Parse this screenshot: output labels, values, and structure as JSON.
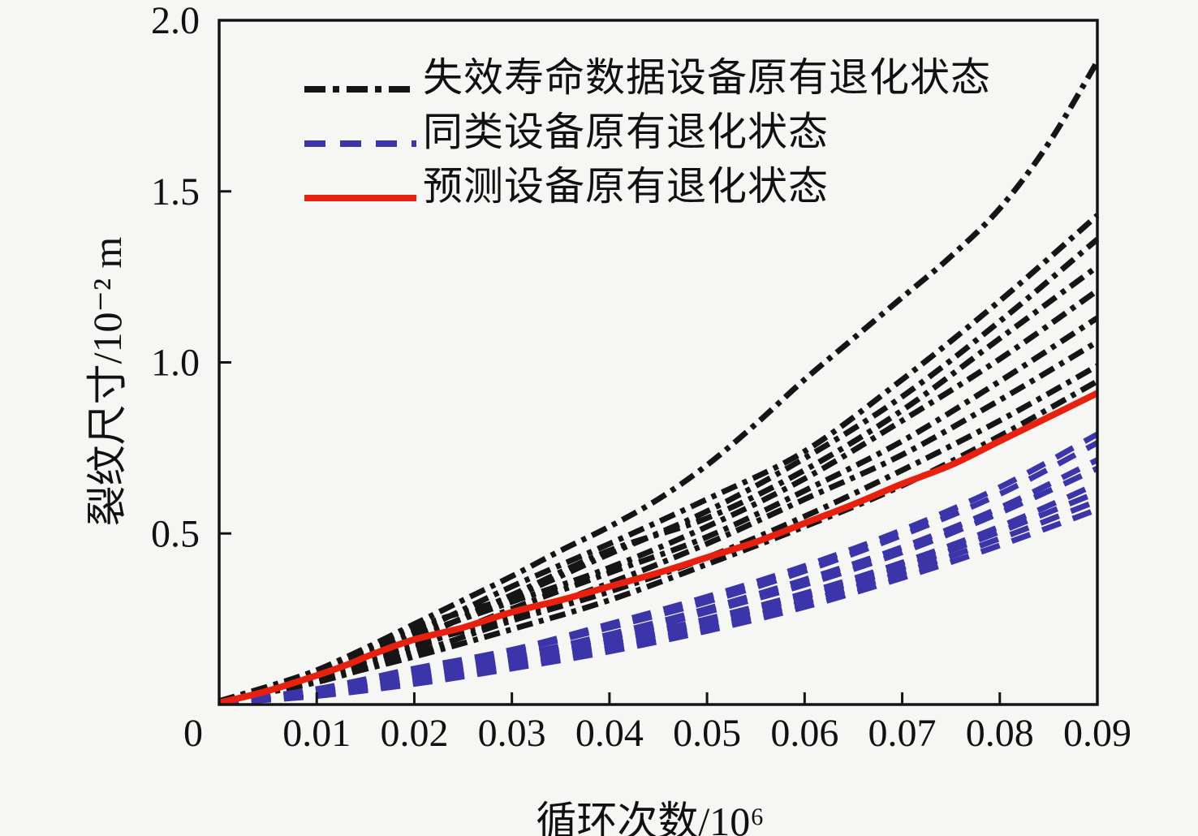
{
  "figure": {
    "background": "#f6f6f4",
    "frame_color": "#141414"
  },
  "chart_data": {
    "type": "line",
    "title": "",
    "xlabel": "循环次数/10⁶",
    "ylabel": "裂纹尺寸/10⁻² m",
    "xlim": [
      0,
      0.09
    ],
    "ylim": [
      0,
      2.0
    ],
    "grid": false,
    "legend_position": "top-left-inside",
    "x_ticks": [
      {
        "v": 0,
        "label": "0"
      },
      {
        "v": 0.01,
        "label": "0.01"
      },
      {
        "v": 0.02,
        "label": "0.02"
      },
      {
        "v": 0.03,
        "label": "0.03"
      },
      {
        "v": 0.04,
        "label": "0.04"
      },
      {
        "v": 0.05,
        "label": "0.05"
      },
      {
        "v": 0.06,
        "label": "0.06"
      },
      {
        "v": 0.07,
        "label": "0.07"
      },
      {
        "v": 0.08,
        "label": "0.08"
      },
      {
        "v": 0.09,
        "label": "0.09"
      }
    ],
    "y_ticks": [
      {
        "v": 0.5,
        "label": "0.5"
      },
      {
        "v": 1.0,
        "label": "1.0"
      },
      {
        "v": 1.5,
        "label": "1.5"
      },
      {
        "v": 2.0,
        "label": "2.0"
      }
    ],
    "legend": [
      {
        "label": "失效寿命数据设备原有退化状态",
        "color": "#151515",
        "dash": "dashdot"
      },
      {
        "label": "同类设备原有退化状态",
        "color": "#3c35aa",
        "dash": "dashed"
      },
      {
        "label": "预测设备原有退化状态",
        "color": "#e8200f",
        "dash": "solid"
      }
    ],
    "series": [
      {
        "name": "failure-top",
        "legend_group": "失效寿命数据设备原有退化状态",
        "color": "#151515",
        "dash": "dashdot",
        "width": 7,
        "points": [
          [
            0,
            0.01
          ],
          [
            0.005,
            0.045
          ],
          [
            0.01,
            0.1
          ],
          [
            0.015,
            0.165
          ],
          [
            0.02,
            0.235
          ],
          [
            0.025,
            0.305
          ],
          [
            0.03,
            0.375
          ],
          [
            0.035,
            0.45
          ],
          [
            0.04,
            0.52
          ],
          [
            0.045,
            0.6
          ],
          [
            0.05,
            0.7
          ],
          [
            0.055,
            0.82
          ],
          [
            0.06,
            0.95
          ],
          [
            0.065,
            1.07
          ],
          [
            0.07,
            1.19
          ],
          [
            0.075,
            1.31
          ],
          [
            0.08,
            1.45
          ],
          [
            0.085,
            1.64
          ],
          [
            0.09,
            1.88
          ]
        ]
      },
      {
        "name": "failure-1",
        "legend_group": "失效寿命数据设备原有退化状态",
        "color": "#151515",
        "dash": "dashdot",
        "width": 7,
        "points": [
          [
            0,
            0.01
          ],
          [
            0.01,
            0.09
          ],
          [
            0.02,
            0.21
          ],
          [
            0.03,
            0.345
          ],
          [
            0.04,
            0.47
          ],
          [
            0.05,
            0.6
          ],
          [
            0.06,
            0.74
          ],
          [
            0.07,
            0.95
          ],
          [
            0.08,
            1.18
          ],
          [
            0.09,
            1.43
          ]
        ]
      },
      {
        "name": "failure-2",
        "legend_group": "失效寿命数据设备原有退化状态",
        "color": "#151515",
        "dash": "dashdot",
        "width": 7,
        "points": [
          [
            0,
            0.01
          ],
          [
            0.01,
            0.1
          ],
          [
            0.02,
            0.225
          ],
          [
            0.03,
            0.315
          ],
          [
            0.04,
            0.44
          ],
          [
            0.05,
            0.565
          ],
          [
            0.06,
            0.72
          ],
          [
            0.07,
            0.9
          ],
          [
            0.08,
            1.12
          ],
          [
            0.09,
            1.36
          ]
        ]
      },
      {
        "name": "failure-3",
        "legend_group": "失效寿命数据设备原有退化状态",
        "color": "#151515",
        "dash": "dashdot",
        "width": 7,
        "points": [
          [
            0,
            0.01
          ],
          [
            0.01,
            0.08
          ],
          [
            0.02,
            0.19
          ],
          [
            0.03,
            0.32
          ],
          [
            0.04,
            0.45
          ],
          [
            0.05,
            0.545
          ],
          [
            0.06,
            0.685
          ],
          [
            0.07,
            0.86
          ],
          [
            0.08,
            1.07
          ],
          [
            0.09,
            1.28
          ]
        ]
      },
      {
        "name": "failure-4",
        "legend_group": "失效寿命数据设备原有退化状态",
        "color": "#151515",
        "dash": "dashdot",
        "width": 7,
        "points": [
          [
            0,
            0.01
          ],
          [
            0.01,
            0.09
          ],
          [
            0.02,
            0.2
          ],
          [
            0.03,
            0.3
          ],
          [
            0.04,
            0.4
          ],
          [
            0.05,
            0.52
          ],
          [
            0.06,
            0.66
          ],
          [
            0.07,
            0.83
          ],
          [
            0.08,
            1.01
          ],
          [
            0.09,
            1.21
          ]
        ]
      },
      {
        "name": "failure-5",
        "legend_group": "失效寿命数据设备原有退化状态",
        "color": "#151515",
        "dash": "dashdot",
        "width": 7,
        "points": [
          [
            0,
            0.01
          ],
          [
            0.01,
            0.07
          ],
          [
            0.02,
            0.165
          ],
          [
            0.03,
            0.28
          ],
          [
            0.04,
            0.385
          ],
          [
            0.05,
            0.49
          ],
          [
            0.06,
            0.625
          ],
          [
            0.07,
            0.77
          ],
          [
            0.08,
            0.945
          ],
          [
            0.09,
            1.13
          ]
        ]
      },
      {
        "name": "failure-6",
        "legend_group": "失效寿命数据设备原有退化状态",
        "color": "#151515",
        "dash": "dashdot",
        "width": 7,
        "points": [
          [
            0,
            0.01
          ],
          [
            0.01,
            0.08
          ],
          [
            0.02,
            0.175
          ],
          [
            0.03,
            0.255
          ],
          [
            0.04,
            0.355
          ],
          [
            0.05,
            0.47
          ],
          [
            0.06,
            0.6
          ],
          [
            0.07,
            0.73
          ],
          [
            0.08,
            0.89
          ],
          [
            0.09,
            1.06
          ]
        ]
      },
      {
        "name": "failure-7",
        "legend_group": "失效寿命数据设备原有退化状态",
        "color": "#151515",
        "dash": "dashdot",
        "width": 7,
        "points": [
          [
            0,
            0.01
          ],
          [
            0.01,
            0.065
          ],
          [
            0.02,
            0.15
          ],
          [
            0.03,
            0.245
          ],
          [
            0.04,
            0.33
          ],
          [
            0.05,
            0.43
          ],
          [
            0.06,
            0.55
          ],
          [
            0.07,
            0.685
          ],
          [
            0.08,
            0.83
          ],
          [
            0.09,
            0.99
          ]
        ]
      },
      {
        "name": "failure-8",
        "legend_group": "失效寿命数据设备原有退化状态",
        "color": "#151515",
        "dash": "dashdot",
        "width": 7,
        "points": [
          [
            0,
            0.01
          ],
          [
            0.01,
            0.07
          ],
          [
            0.02,
            0.14
          ],
          [
            0.03,
            0.22
          ],
          [
            0.04,
            0.305
          ],
          [
            0.05,
            0.41
          ],
          [
            0.06,
            0.52
          ],
          [
            0.07,
            0.64
          ],
          [
            0.08,
            0.785
          ],
          [
            0.09,
            0.945
          ]
        ]
      },
      {
        "name": "similar-1",
        "legend_group": "同类设备原有退化状态",
        "color": "#3c35aa",
        "dash": "dashed",
        "width": 7,
        "points": [
          [
            0,
            0.005
          ],
          [
            0.01,
            0.045
          ],
          [
            0.02,
            0.105
          ],
          [
            0.03,
            0.16
          ],
          [
            0.04,
            0.235
          ],
          [
            0.05,
            0.315
          ],
          [
            0.06,
            0.405
          ],
          [
            0.07,
            0.51
          ],
          [
            0.08,
            0.635
          ],
          [
            0.09,
            0.79
          ]
        ]
      },
      {
        "name": "similar-2",
        "legend_group": "同类设备原有退化状态",
        "color": "#3c35aa",
        "dash": "dashed",
        "width": 7,
        "points": [
          [
            0,
            0.005
          ],
          [
            0.01,
            0.04
          ],
          [
            0.02,
            0.095
          ],
          [
            0.03,
            0.155
          ],
          [
            0.04,
            0.225
          ],
          [
            0.05,
            0.3
          ],
          [
            0.06,
            0.39
          ],
          [
            0.07,
            0.495
          ],
          [
            0.08,
            0.615
          ],
          [
            0.09,
            0.765
          ]
        ]
      },
      {
        "name": "similar-3",
        "legend_group": "同类设备原有退化状态",
        "color": "#3c35aa",
        "dash": "dashed",
        "width": 7,
        "points": [
          [
            0,
            0.005
          ],
          [
            0.01,
            0.035
          ],
          [
            0.02,
            0.09
          ],
          [
            0.03,
            0.14
          ],
          [
            0.04,
            0.205
          ],
          [
            0.05,
            0.28
          ],
          [
            0.06,
            0.365
          ],
          [
            0.07,
            0.46
          ],
          [
            0.08,
            0.575
          ],
          [
            0.09,
            0.715
          ]
        ]
      },
      {
        "name": "similar-4",
        "legend_group": "同类设备原有退化状态",
        "color": "#3c35aa",
        "dash": "dashed",
        "width": 7,
        "points": [
          [
            0,
            0.005
          ],
          [
            0.01,
            0.035
          ],
          [
            0.02,
            0.085
          ],
          [
            0.03,
            0.135
          ],
          [
            0.04,
            0.195
          ],
          [
            0.05,
            0.27
          ],
          [
            0.06,
            0.35
          ],
          [
            0.07,
            0.445
          ],
          [
            0.08,
            0.56
          ],
          [
            0.09,
            0.69
          ]
        ]
      },
      {
        "name": "similar-5",
        "legend_group": "同类设备原有退化状态",
        "color": "#3c35aa",
        "dash": "dashed",
        "width": 7,
        "points": [
          [
            0,
            0.005
          ],
          [
            0.01,
            0.03
          ],
          [
            0.02,
            0.075
          ],
          [
            0.03,
            0.125
          ],
          [
            0.04,
            0.185
          ],
          [
            0.05,
            0.25
          ],
          [
            0.06,
            0.325
          ],
          [
            0.07,
            0.415
          ],
          [
            0.08,
            0.52
          ],
          [
            0.09,
            0.645
          ]
        ]
      },
      {
        "name": "similar-6",
        "legend_group": "同类设备原有退化状态",
        "color": "#3c35aa",
        "dash": "dashed",
        "width": 7,
        "points": [
          [
            0,
            0.005
          ],
          [
            0.01,
            0.03
          ],
          [
            0.02,
            0.07
          ],
          [
            0.03,
            0.12
          ],
          [
            0.04,
            0.175
          ],
          [
            0.05,
            0.24
          ],
          [
            0.06,
            0.315
          ],
          [
            0.07,
            0.4
          ],
          [
            0.08,
            0.505
          ],
          [
            0.09,
            0.62
          ]
        ]
      },
      {
        "name": "similar-7",
        "legend_group": "同类设备原有退化状态",
        "color": "#3c35aa",
        "dash": "dashed",
        "width": 7,
        "points": [
          [
            0,
            0.005
          ],
          [
            0.01,
            0.025
          ],
          [
            0.02,
            0.065
          ],
          [
            0.03,
            0.11
          ],
          [
            0.04,
            0.165
          ],
          [
            0.05,
            0.225
          ],
          [
            0.06,
            0.3
          ],
          [
            0.07,
            0.385
          ],
          [
            0.08,
            0.485
          ],
          [
            0.09,
            0.595
          ]
        ]
      },
      {
        "name": "similar-8",
        "legend_group": "同类设备原有退化状态",
        "color": "#3c35aa",
        "dash": "dashed",
        "width": 7,
        "points": [
          [
            0,
            0.005
          ],
          [
            0.01,
            0.025
          ],
          [
            0.02,
            0.06
          ],
          [
            0.03,
            0.105
          ],
          [
            0.04,
            0.155
          ],
          [
            0.05,
            0.215
          ],
          [
            0.06,
            0.285
          ],
          [
            0.07,
            0.37
          ],
          [
            0.08,
            0.465
          ],
          [
            0.09,
            0.57
          ]
        ]
      },
      {
        "name": "predicted",
        "legend_group": "预测设备原有退化状态",
        "color": "#e8200f",
        "dash": "solid",
        "width": 8,
        "points": [
          [
            0,
            0.005
          ],
          [
            0.005,
            0.04
          ],
          [
            0.01,
            0.085
          ],
          [
            0.013,
            0.115
          ],
          [
            0.016,
            0.15
          ],
          [
            0.02,
            0.19
          ],
          [
            0.025,
            0.225
          ],
          [
            0.03,
            0.27
          ],
          [
            0.035,
            0.305
          ],
          [
            0.04,
            0.345
          ],
          [
            0.045,
            0.385
          ],
          [
            0.05,
            0.43
          ],
          [
            0.055,
            0.475
          ],
          [
            0.06,
            0.53
          ],
          [
            0.065,
            0.585
          ],
          [
            0.07,
            0.645
          ],
          [
            0.075,
            0.7
          ],
          [
            0.08,
            0.77
          ],
          [
            0.085,
            0.84
          ],
          [
            0.09,
            0.91
          ]
        ]
      }
    ]
  }
}
